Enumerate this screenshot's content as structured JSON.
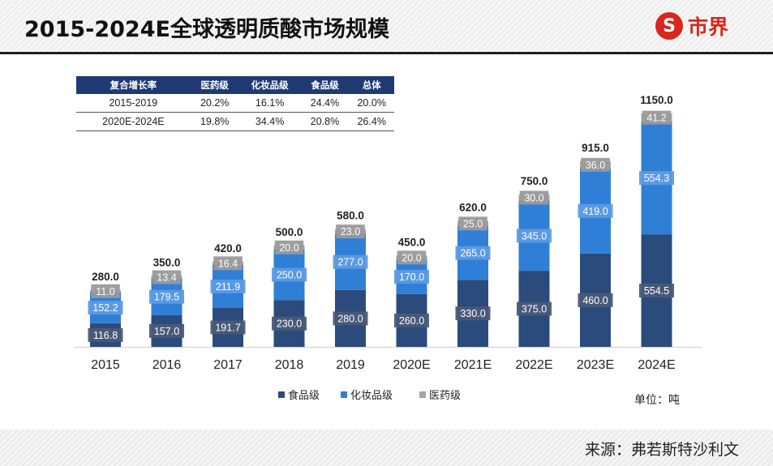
{
  "header": {
    "title": "2015-2024E全球透明质酸市场规模",
    "brand_name": "市界",
    "brand_mark": "S"
  },
  "growth_table": {
    "headers": [
      "复合增长率",
      "医药级",
      "化妆品级",
      "食品级",
      "总体"
    ],
    "rows": [
      [
        "2015-2019",
        "20.2%",
        "16.1%",
        "24.4%",
        "20.0%"
      ],
      [
        "2020E-2024E",
        "19.8%",
        "34.4%",
        "20.8%",
        "26.4%"
      ]
    ]
  },
  "unit_label": "单位：吨",
  "source_label": "来源：弗若斯特沙利文",
  "colors": {
    "food": "#2a4b7c",
    "cosmetic": "#2f7fd6",
    "pharma": "#a6a6a6",
    "table_header": "#1f3a73",
    "brand": "#d9261c"
  },
  "chart_data": {
    "type": "bar",
    "stacked": true,
    "title": "2015-2024E全球透明质酸市场规模",
    "unit": "吨",
    "categories": [
      "2015",
      "2016",
      "2017",
      "2018",
      "2019",
      "2020E",
      "2021E",
      "2022E",
      "2023E",
      "2024E"
    ],
    "series": [
      {
        "name": "食品级",
        "key": "food",
        "values": [
          116.8,
          157.0,
          191.7,
          230.0,
          280.0,
          260.0,
          330.0,
          375.0,
          460.0,
          554.5
        ]
      },
      {
        "name": "化妆品级",
        "key": "cosmetic",
        "values": [
          152.2,
          179.5,
          211.9,
          250.0,
          277.0,
          170.0,
          265.0,
          345.0,
          419.0,
          554.3
        ]
      },
      {
        "name": "医药级",
        "key": "pharma",
        "values": [
          11.0,
          13.4,
          16.4,
          20.0,
          23.0,
          20.0,
          25.0,
          30.0,
          36.0,
          41.2
        ]
      }
    ],
    "totals": [
      280.0,
      350.0,
      420.0,
      500.0,
      580.0,
      450.0,
      620.0,
      750.0,
      915.0,
      1150.0
    ],
    "ylim": [
      0,
      1150
    ],
    "legend": [
      "食品级",
      "化妆品级",
      "医药级"
    ],
    "legend_position": "bottom-center"
  }
}
